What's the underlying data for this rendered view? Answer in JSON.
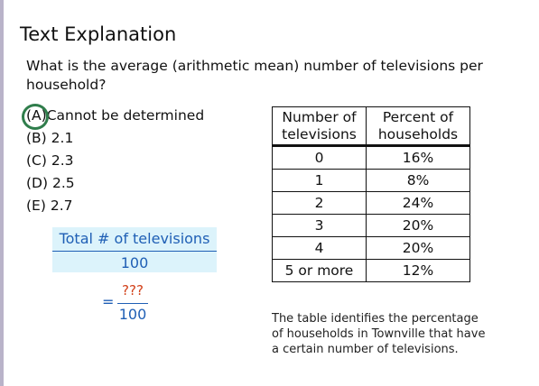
{
  "title": "Text Explanation",
  "question": "What is the average (arithmetic mean) number of televisions per household?",
  "choices": [
    {
      "letter": "(A)",
      "text": "Cannot be determined",
      "selected": true
    },
    {
      "letter": "(B)",
      "text": "2.1"
    },
    {
      "letter": "(C)",
      "text": "2.3"
    },
    {
      "letter": "(D)",
      "text": "2.5"
    },
    {
      "letter": "(E)",
      "text": "2.7"
    }
  ],
  "work": {
    "numerator": "Total # of televisions",
    "denominator": "100",
    "equals": "=",
    "unknown": "???",
    "denominator2": "100"
  },
  "table": {
    "headers": [
      "Number of televisions",
      "Percent of households"
    ],
    "rows": [
      [
        "0",
        "16%"
      ],
      [
        "1",
        "8%"
      ],
      [
        "2",
        "24%"
      ],
      [
        "3",
        "20%"
      ],
      [
        "4",
        "20%"
      ],
      [
        "5 or more",
        "12%"
      ]
    ]
  },
  "caption": "The table identifies the percentage of households in Townville that have a certain number of televisions.",
  "colors": {
    "accent_blue": "#1f5fb5",
    "highlight": "#dcf3fb",
    "circle_green": "#2f7d4b",
    "unknown_red": "#d2411a"
  }
}
